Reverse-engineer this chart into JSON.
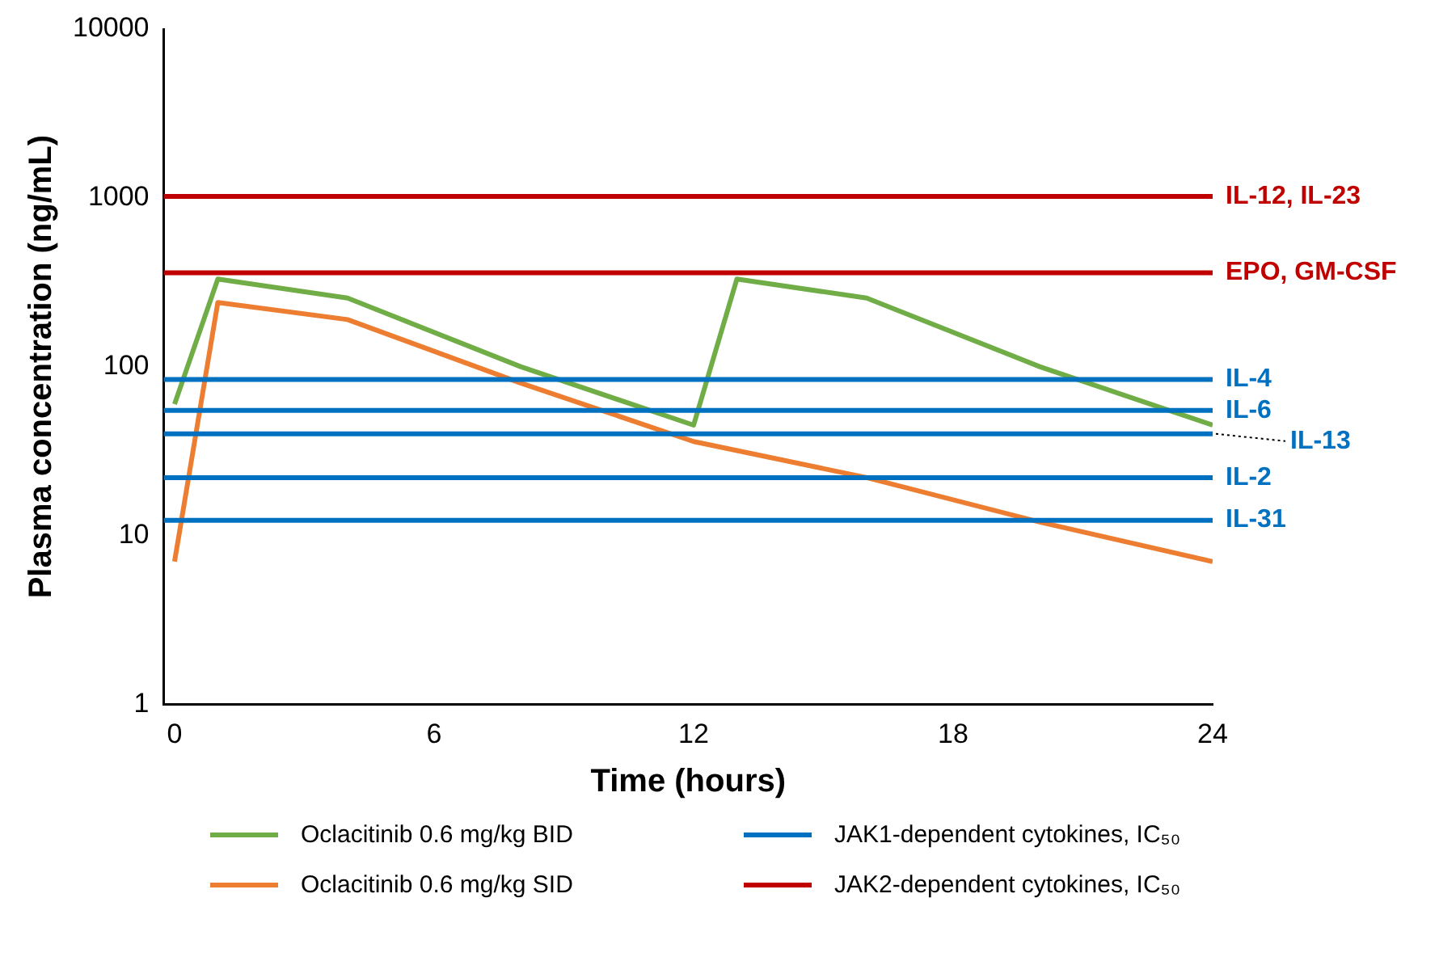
{
  "chart_data": {
    "type": "line",
    "xlabel": "Time (hours)",
    "ylabel": "Plasma concentration (ng/mL)",
    "log": "y",
    "xlim": [
      -0.25,
      24
    ],
    "xticks": [
      0,
      6,
      12,
      18,
      24
    ],
    "ylim": [
      1,
      10000
    ],
    "yticks": [
      1,
      10,
      100,
      1000,
      10000
    ],
    "grid": false,
    "legend": "bottom",
    "marker": "none",
    "line_style": "solid",
    "series": [
      {
        "name": "Oclacitinib 0.6 mg/kg BID",
        "color": "#70ad47",
        "x": [
          0,
          1,
          4,
          8,
          12,
          13,
          16,
          20,
          24
        ],
        "values": [
          60,
          330,
          255,
          100,
          45,
          330,
          255,
          100,
          45
        ]
      },
      {
        "name": "Oclacitinib 0.6 mg/kg SID",
        "color": "#ed7d31",
        "x": [
          0,
          1,
          4,
          8,
          12,
          16,
          20,
          24
        ],
        "values": [
          7,
          240,
          190,
          80,
          36,
          22,
          12,
          7
        ]
      },
      {
        "name": "JAK1-dependent cytokines, IC₅₀",
        "color": "#0070c0"
      },
      {
        "name": "JAK2-dependent cytokines, IC₅₀",
        "color": "#c00000"
      }
    ],
    "ref_lines": [
      {
        "axis": "y",
        "value": 1020,
        "label": "IL-12, IL-23",
        "color": "#c00000"
      },
      {
        "axis": "y",
        "value": 360,
        "label": "EPO, GM-CSF",
        "color": "#c00000"
      },
      {
        "axis": "y",
        "value": 84,
        "label": "IL-4",
        "color": "#0070c0"
      },
      {
        "axis": "y",
        "value": 55,
        "label": "IL-6",
        "color": "#0070c0"
      },
      {
        "axis": "y",
        "value": 40,
        "label": "IL-13",
        "color": "#0070c0"
      },
      {
        "axis": "y",
        "value": 22,
        "label": "IL-2",
        "color": "#0070c0"
      },
      {
        "axis": "y",
        "value": 12.3,
        "label": "IL-31",
        "color": "#0070c0"
      }
    ]
  }
}
